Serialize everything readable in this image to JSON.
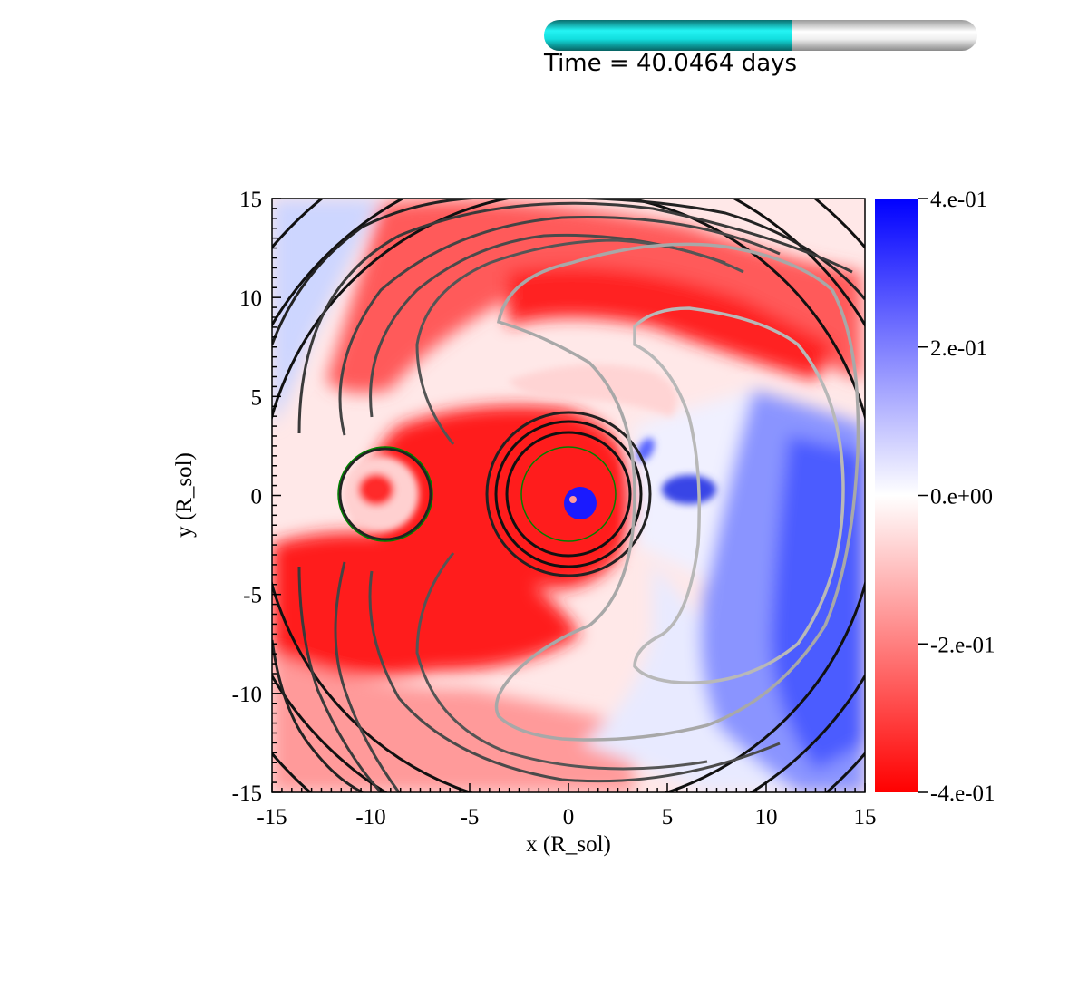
{
  "time": {
    "label": "Time = 40.0464 days",
    "progress": 0.574
  },
  "chart_data": {
    "type": "heatmap",
    "xlabel": "x (R_sol)",
    "ylabel": "y (R_sol)",
    "xlim": [
      -15,
      15
    ],
    "ylim": [
      -15,
      15
    ],
    "xticks": [
      -15,
      -10,
      -5,
      0,
      5,
      10,
      15
    ],
    "yticks": [
      -15,
      -10,
      -5,
      0,
      5,
      10,
      15
    ],
    "grid": false,
    "colorbar": {
      "vmin": -0.4,
      "vmax": 0.4,
      "ticks": [
        0.4,
        0.2,
        0.0,
        -0.2,
        -0.4
      ],
      "tick_labels": [
        "4.e-01",
        "2.e-01",
        "0.e+00",
        "-2.e-01",
        "-4.e-01"
      ],
      "colors": {
        "low": "#ff0000",
        "mid": "#ffffff",
        "high": "#0000ff"
      }
    },
    "stars": [
      {
        "cx": -9.5,
        "cy": 0.1,
        "r": 2.0
      },
      {
        "cx": 0.0,
        "cy": 0.1,
        "r": 2.4
      }
    ],
    "contour_colors": {
      "inner": "#111111",
      "mid": "#555555",
      "outer": "#b0b0b0",
      "star": "#008000"
    }
  }
}
